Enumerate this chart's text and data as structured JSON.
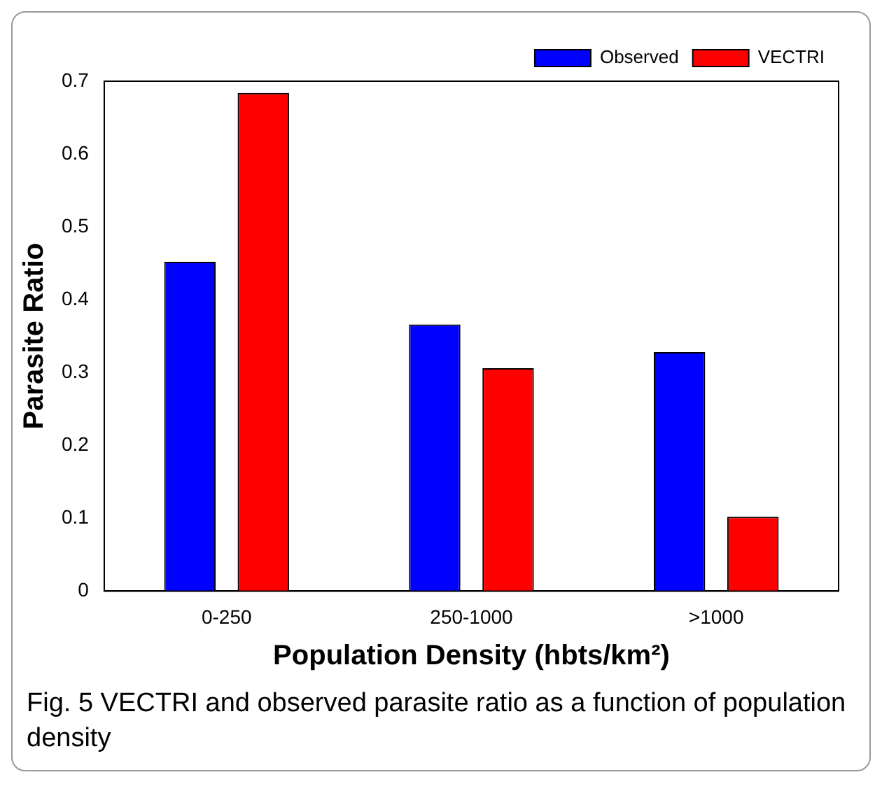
{
  "chart_data": {
    "type": "bar",
    "xlabel": "Population Density (hbts/km²)",
    "ylabel": "Parasite Ratio",
    "categories": [
      "0-250",
      "250-1000",
      ">1000"
    ],
    "series": [
      {
        "name": "Observed",
        "color": "#0000ff",
        "values": [
          0.452,
          0.366,
          0.328
        ]
      },
      {
        "name": "VECTRI",
        "color": "#ff0000",
        "values": [
          0.684,
          0.306,
          0.102
        ]
      }
    ],
    "ylim": [
      0,
      0.7
    ],
    "yticks": [
      0,
      0.1,
      0.2,
      0.3,
      0.4,
      0.5,
      0.6,
      0.7
    ],
    "grid": false,
    "legend": "top right",
    "annotations": [
      "Fig. 5  VECTRI and observed parasite ratio as a function of population density"
    ]
  }
}
